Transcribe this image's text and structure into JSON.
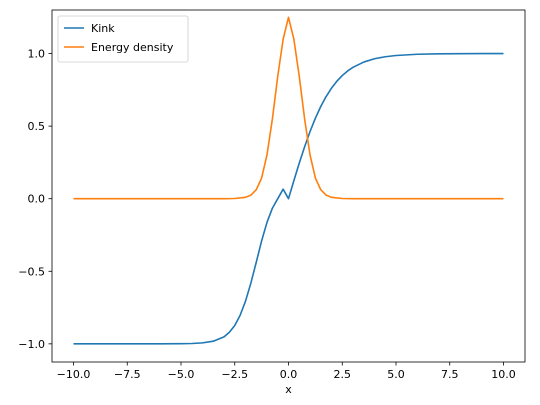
{
  "chart_data": {
    "type": "line",
    "title": "",
    "xlabel": "x",
    "ylabel": "",
    "xlim": [
      -11.0,
      11.0
    ],
    "ylim": [
      -1.125,
      1.3
    ],
    "grid": false,
    "legend_position": "top-left",
    "x_ticks": [
      {
        "value": -10,
        "label": "−10.0"
      },
      {
        "value": -7.5,
        "label": "−7.5"
      },
      {
        "value": -5,
        "label": "−5.0"
      },
      {
        "value": -2.5,
        "label": "−2.5"
      },
      {
        "value": 0,
        "label": "0.0"
      },
      {
        "value": 2.5,
        "label": "2.5"
      },
      {
        "value": 5,
        "label": "5.0"
      },
      {
        "value": 7.5,
        "label": "7.5"
      },
      {
        "value": 10,
        "label": "10.0"
      }
    ],
    "y_ticks": [
      {
        "value": -1.0,
        "label": "−1.0"
      },
      {
        "value": -0.5,
        "label": "−0.5"
      },
      {
        "value": 0.0,
        "label": "0.0"
      },
      {
        "value": 0.5,
        "label": "0.5"
      },
      {
        "value": 1.0,
        "label": "1.0"
      }
    ],
    "series": [
      {
        "name": "Kink",
        "color": "#1f77b4",
        "x": [
          -10,
          -9,
          -8,
          -7,
          -6,
          -5,
          -4.5,
          -4,
          -3.5,
          -3,
          -2.75,
          -2.5,
          -2.25,
          -2,
          -1.75,
          -1.5,
          -1.25,
          -1,
          -0.75,
          -0.5,
          -0.25,
          0,
          0.25,
          0.5,
          0.75,
          1,
          1.25,
          1.5,
          1.75,
          2,
          2.25,
          2.5,
          2.75,
          3,
          3.5,
          4,
          4.5,
          5,
          6,
          7,
          8,
          9,
          10
        ],
        "y": [
          -1.0,
          -1.0,
          -1.0,
          -1.0,
          -0.9999,
          -0.9991,
          -0.9975,
          -0.9933,
          -0.9818,
          -0.9517,
          -0.9202,
          -0.8739,
          -0.8031,
          -0.7062,
          -0.581,
          -0.4377,
          -0.2904,
          -0.1627,
          -0.0656,
          0.0,
          0.0656,
          0.0,
          0.1244,
          0.2449,
          0.3581,
          0.4621,
          0.5546,
          0.6351,
          0.7039,
          0.7616,
          0.8093,
          0.8483,
          0.88,
          0.9051,
          0.9414,
          0.964,
          0.978,
          0.9866,
          0.9951,
          0.9982,
          0.9993,
          0.9998,
          0.9999
        ]
      },
      {
        "name": "Energy density",
        "color": "#ff7f0e",
        "x": [
          -10,
          -5,
          -3,
          -2.5,
          -2,
          -1.75,
          -1.5,
          -1.25,
          -1,
          -0.75,
          -0.5,
          -0.25,
          0,
          0.25,
          0.5,
          0.75,
          1,
          1.25,
          1.5,
          1.75,
          2,
          2.5,
          3,
          5,
          10
        ],
        "y": [
          0.0,
          0.0,
          0.0002,
          0.0013,
          0.0095,
          0.0246,
          0.0617,
          0.1427,
          0.3022,
          0.5493,
          0.8436,
          1.0985,
          1.25,
          1.0985,
          0.8436,
          0.5493,
          0.3022,
          0.1427,
          0.0617,
          0.0246,
          0.0095,
          0.0013,
          0.0002,
          0.0,
          0.0
        ]
      }
    ]
  }
}
